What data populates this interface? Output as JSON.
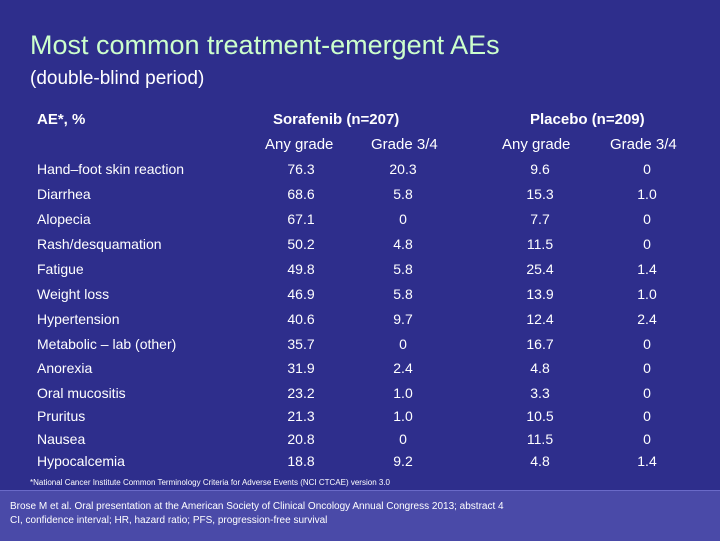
{
  "title": "Most common treatment-emergent AEs",
  "subtitle": "(double-blind period)",
  "table": {
    "corner_header": "AE*, %",
    "group_sorafenib": "Sorafenib (n=207)",
    "group_placebo": "Placebo (n=209)",
    "sub_any_grade_1": "Any grade",
    "sub_grade34_1": "Grade 3/4",
    "sub_any_grade_2": "Any grade",
    "sub_grade34_2": "Grade 3/4",
    "rows": [
      {
        "label": "Hand–foot skin reaction",
        "soraf_any": "76.3",
        "soraf_g34": "20.3",
        "plac_any": "9.6",
        "plac_g34": "0"
      },
      {
        "label": "Diarrhea",
        "soraf_any": "68.6",
        "soraf_g34": "5.8",
        "plac_any": "15.3",
        "plac_g34": "1.0"
      },
      {
        "label": "Alopecia",
        "soraf_any": "67.1",
        "soraf_g34": "0",
        "plac_any": "7.7",
        "plac_g34": "0"
      },
      {
        "label": "Rash/desquamation",
        "soraf_any": "50.2",
        "soraf_g34": "4.8",
        "plac_any": "11.5",
        "plac_g34": "0"
      },
      {
        "label": "Fatigue",
        "soraf_any": "49.8",
        "soraf_g34": "5.8",
        "plac_any": "25.4",
        "plac_g34": "1.4"
      },
      {
        "label": "Weight loss",
        "soraf_any": "46.9",
        "soraf_g34": "5.8",
        "plac_any": "13.9",
        "plac_g34": "1.0"
      },
      {
        "label": "Hypertension",
        "soraf_any": "40.6",
        "soraf_g34": "9.7",
        "plac_any": "12.4",
        "plac_g34": "2.4"
      },
      {
        "label": "Metabolic – lab (other)",
        "soraf_any": "35.7",
        "soraf_g34": "0",
        "plac_any": "16.7",
        "plac_g34": "0"
      },
      {
        "label": "Anorexia",
        "soraf_any": "31.9",
        "soraf_g34": "2.4",
        "plac_any": "4.8",
        "plac_g34": "0"
      },
      {
        "label": "Oral mucositis",
        "soraf_any": "23.2",
        "soraf_g34": "1.0",
        "plac_any": "3.3",
        "plac_g34": "0"
      },
      {
        "label": "Pruritus",
        "soraf_any": "21.3",
        "soraf_g34": "1.0",
        "plac_any": "10.5",
        "plac_g34": "0"
      },
      {
        "label": "Nausea",
        "soraf_any": "20.8",
        "soraf_g34": "0",
        "plac_any": "11.5",
        "plac_g34": "0"
      },
      {
        "label": "Hypocalcemia",
        "soraf_any": "18.8",
        "soraf_g34": "9.2",
        "plac_any": "4.8",
        "plac_g34": "1.4"
      }
    ]
  },
  "footnote": "*National Cancer Institute Common Terminology Criteria for Adverse Events (NCI CTCAE) version 3.0",
  "reference": {
    "line1": "Brose M et al. Oral presentation at the American Society of Clinical Oncology Annual Congress 2013; abstract  4",
    "line2": "CI, confidence interval; HR, hazard ratio; PFS, progression-free survival"
  },
  "colors": {
    "background": "#2e2e8c",
    "title": "#ccffcc",
    "text": "#ffffff",
    "reference_box": "#4a4aa8"
  }
}
